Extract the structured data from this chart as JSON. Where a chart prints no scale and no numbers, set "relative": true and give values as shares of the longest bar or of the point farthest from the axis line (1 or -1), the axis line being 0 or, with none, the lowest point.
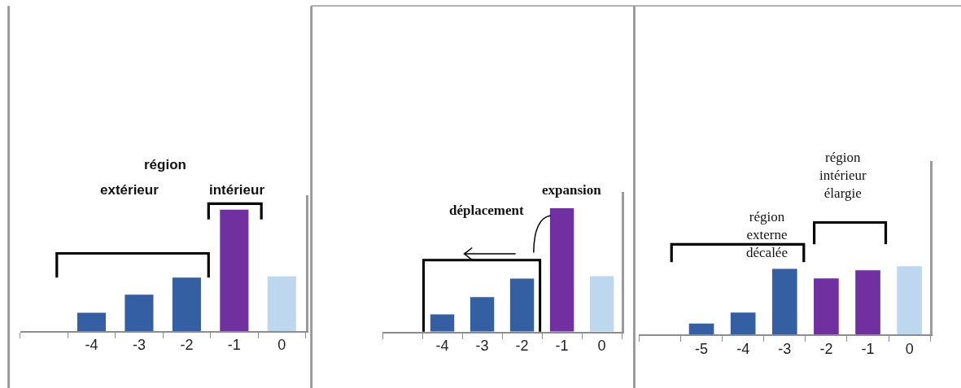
{
  "chart_data": [
    {
      "type": "bar",
      "relative": true,
      "categories": [
        null,
        "-4",
        "-3",
        "-2",
        "-1",
        "0"
      ],
      "values": [
        null,
        0.15,
        0.3,
        0.44,
        1,
        0.45
      ],
      "colors": [
        null,
        "#355fa3",
        "#355fa3",
        "#355fa3",
        "#7030a0",
        "#bdd7ee"
      ],
      "annotations": [
        "région",
        "extérieur",
        "intérieur"
      ]
    },
    {
      "type": "bar",
      "relative": true,
      "categories": [
        null,
        "-4",
        "-3",
        "-2",
        "-1",
        "0"
      ],
      "values": [
        null,
        0.14,
        0.28,
        0.43,
        1,
        0.45
      ],
      "colors": [
        null,
        "#355fa3",
        "#355fa3",
        "#355fa3",
        "#7030a0",
        "#bdd7ee"
      ],
      "annotations": [
        "expansion",
        "déplacement"
      ]
    },
    {
      "type": "bar",
      "relative": true,
      "categories": [
        null,
        "-5",
        "-4",
        "-3",
        "-2",
        "-1",
        "0"
      ],
      "values": [
        null,
        0.16,
        0.32,
        0.96,
        0.82,
        0.94,
        1
      ],
      "colors": [
        null,
        "#355fa3",
        "#355fa3",
        "#355fa3",
        "#7030a0",
        "#7030a0",
        "#bdd7ee"
      ],
      "annotations": [
        "région\nexterne\ndécalée",
        "région\nintérieur\nélargie"
      ]
    }
  ]
}
